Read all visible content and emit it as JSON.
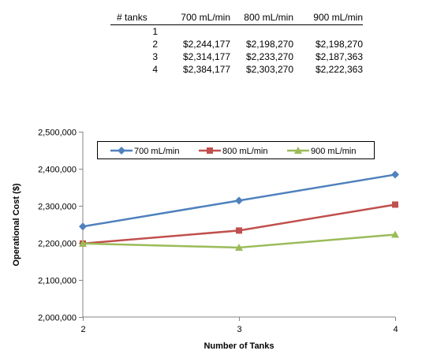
{
  "table": {
    "headers": [
      "# tanks",
      "700 mL/min",
      "800 mL/min",
      "900 mL/min"
    ],
    "rows": [
      [
        "1",
        "",
        "",
        ""
      ],
      [
        "2",
        "$2,244,177",
        "$2,198,270",
        "$2,198,270"
      ],
      [
        "3",
        "$2,314,177",
        "$2,233,270",
        "$2,187,363"
      ],
      [
        "4",
        "$2,384,177",
        "$2,303,270",
        "$2,222,363"
      ]
    ]
  },
  "chart_data": {
    "type": "line",
    "x": [
      2,
      3,
      4
    ],
    "x_tick_labels": [
      "2",
      "3",
      "4"
    ],
    "xlabel": "Number of Tanks",
    "ylabel": "Operational Cost ($)",
    "ylim": [
      2000000,
      2500000
    ],
    "y_ticks": [
      2000000,
      2100000,
      2200000,
      2300000,
      2400000,
      2500000
    ],
    "y_tick_labels": [
      "2,000,000",
      "2,100,000",
      "2,200,000",
      "2,300,000",
      "2,400,000",
      "2,500,000"
    ],
    "grid": false,
    "legend_position": "top-inside",
    "series": [
      {
        "name": "700 mL/min",
        "values": [
          2244177,
          2314177,
          2384177
        ],
        "color": "#4f81bd",
        "marker": "diamond"
      },
      {
        "name": "800 mL/min",
        "values": [
          2198270,
          2233270,
          2303270
        ],
        "color": "#c0504d",
        "marker": "square"
      },
      {
        "name": "900 mL/min",
        "values": [
          2198270,
          2187363,
          2222363
        ],
        "color": "#9bbb59",
        "marker": "triangle"
      }
    ]
  }
}
